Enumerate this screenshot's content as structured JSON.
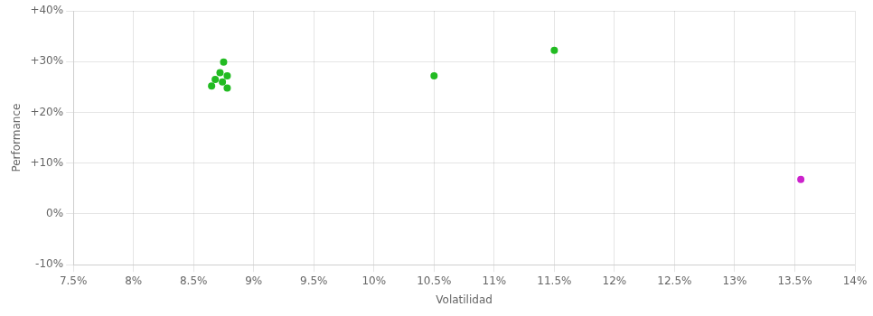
{
  "chart_data": {
    "type": "scatter",
    "xlabel": "Volatilidad",
    "ylabel": "Performance",
    "xlim": [
      0.075,
      0.14
    ],
    "ylim": [
      -0.1,
      0.4
    ],
    "xticks": [
      {
        "value": 0.075,
        "label": "7.5%"
      },
      {
        "value": 0.08,
        "label": "8%"
      },
      {
        "value": 0.085,
        "label": "8.5%"
      },
      {
        "value": 0.09,
        "label": "9%"
      },
      {
        "value": 0.095,
        "label": "9.5%"
      },
      {
        "value": 0.1,
        "label": "10%"
      },
      {
        "value": 0.105,
        "label": "10.5%"
      },
      {
        "value": 0.11,
        "label": "11%"
      },
      {
        "value": 0.115,
        "label": "11.5%"
      },
      {
        "value": 0.12,
        "label": "12%"
      },
      {
        "value": 0.125,
        "label": "12.5%"
      },
      {
        "value": 0.13,
        "label": "13%"
      },
      {
        "value": 0.135,
        "label": "13.5%"
      },
      {
        "value": 0.14,
        "label": "14%"
      }
    ],
    "yticks": [
      {
        "value": -0.1,
        "label": "-10%"
      },
      {
        "value": 0.0,
        "label": "0%"
      },
      {
        "value": 0.1,
        "label": "+10%"
      },
      {
        "value": 0.2,
        "label": "+20%"
      },
      {
        "value": 0.3,
        "label": "+30%"
      },
      {
        "value": 0.4,
        "label": "+40%"
      }
    ],
    "grid": true,
    "series": [
      {
        "color": "#22bb22",
        "x": [
          0.0875,
          0.0872,
          0.0878,
          0.0868,
          0.0874,
          0.0865,
          0.0878,
          0.105,
          0.115
        ],
        "values": [
          0.299,
          0.278,
          0.272,
          0.265,
          0.26,
          0.252,
          0.248,
          0.272,
          0.322
        ]
      },
      {
        "color": "#cc22cc",
        "x": [
          0.1355
        ],
        "values": [
          0.068
        ]
      }
    ]
  }
}
